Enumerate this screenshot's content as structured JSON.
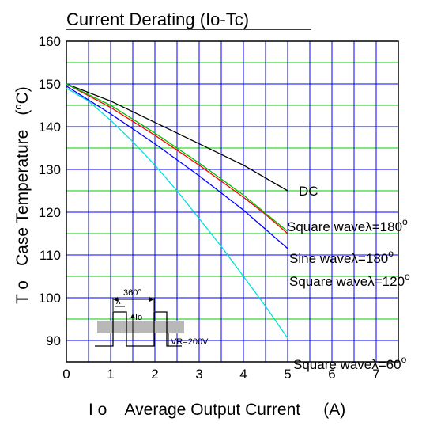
{
  "chart_data": {
    "type": "line",
    "title": "Current Derating  (Io-Tc)",
    "xlabel": "I o    Average Output Current     (A)",
    "ylabel_symbol": "T o",
    "ylabel": "Case Temperature",
    "ylabel_unit_open": "(",
    "ylabel_unit_sup": "o",
    "ylabel_unit_rest": "C)",
    "xlim": [
      0,
      7.5
    ],
    "ylim": [
      85,
      160
    ],
    "xticks": [
      0,
      1,
      2,
      3,
      4,
      5,
      6,
      7
    ],
    "yticks": [
      90,
      100,
      110,
      120,
      130,
      140,
      150,
      160
    ],
    "grid_blue_x": [
      0,
      0.5,
      1,
      1.5,
      2,
      2.5,
      3,
      3.5,
      4,
      4.5,
      5,
      5.5,
      6,
      6.5,
      7,
      7.5
    ],
    "grid_blue_y": [
      90,
      100,
      110,
      120,
      130,
      140,
      150,
      160
    ],
    "grid_green_y": [
      85,
      95,
      105,
      115,
      125,
      135,
      145,
      155
    ],
    "series": [
      {
        "name": "DC",
        "label_main": "DC",
        "label_sup": "",
        "color": "#000000",
        "x": [
          0,
          1,
          2,
          3,
          4,
          5
        ],
        "y": [
          150,
          146,
          141,
          136,
          131,
          125
        ]
      },
      {
        "name": "Square wave 180",
        "label_main": "Square waveλ=180",
        "label_sup": "o",
        "color": "#ff0000",
        "x": [
          0,
          1,
          2,
          3,
          4,
          4.5,
          5
        ],
        "y": [
          150,
          144.5,
          138,
          131,
          123.5,
          119.5,
          115
        ]
      },
      {
        "name": "Sine wave 180",
        "label_main": "Sine waveλ=180",
        "label_sup": "o",
        "color": "#00c000",
        "x": [
          0,
          1,
          2,
          3,
          4,
          5
        ],
        "y": [
          150,
          145,
          138.5,
          131.5,
          124,
          115.5
        ]
      },
      {
        "name": "Square wave 120",
        "label_main": "Square waveλ=120",
        "label_sup": "o",
        "color": "#0000ff",
        "x": [
          0,
          1,
          2,
          3,
          4,
          5
        ],
        "y": [
          149.5,
          143,
          136,
          128.5,
          120.5,
          111.5
        ]
      },
      {
        "name": "Square wave 60",
        "label_main": "Square waveλ=60",
        "label_sup": "o",
        "color": "#00e0e0",
        "x": [
          0,
          0.5,
          1,
          1.5,
          2,
          2.5,
          3,
          3.5,
          4,
          4.5,
          5
        ],
        "y": [
          149,
          146,
          141.5,
          136.5,
          131,
          125,
          118.5,
          112,
          105,
          98,
          90.5
        ]
      }
    ],
    "inset": {
      "angle_label": "360°",
      "lambda_label": "λ",
      "current_label": "Io",
      "voltage_label": "VR=200V"
    }
  }
}
